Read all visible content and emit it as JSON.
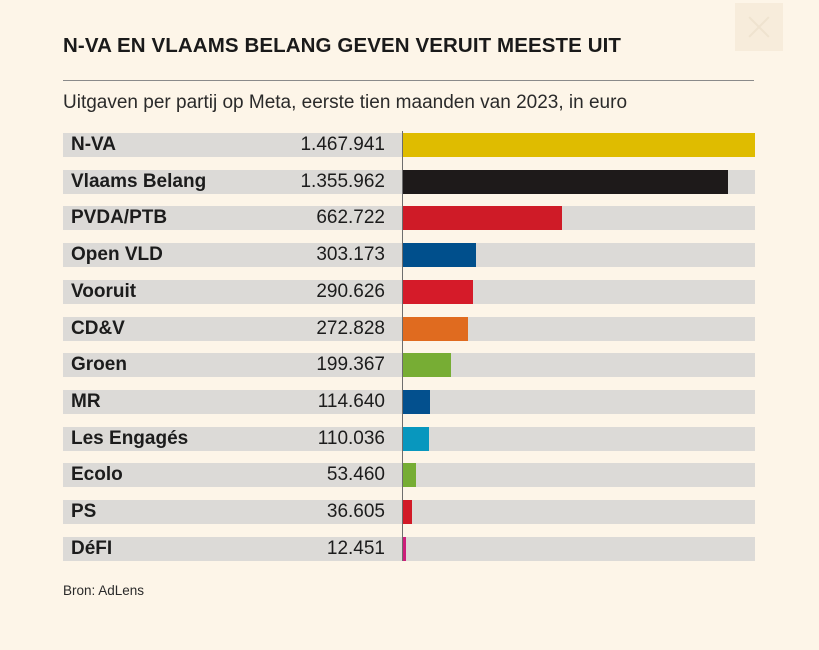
{
  "header": {
    "title": "N-VA EN VLAAMS BELANG GEVEN VERUIT MEESTE UIT",
    "subtitle": "Uitgaven per partij op Meta, eerste tien maanden van 2023, in euro"
  },
  "footer": {
    "source": "Bron: AdLens"
  },
  "chart_data": {
    "type": "bar",
    "orientation": "horizontal",
    "title": "N-VA EN VLAAMS BELANG GEVEN VERUIT MEESTE UIT",
    "subtitle": "Uitgaven per partij op Meta, eerste tien maanden van 2023, in euro",
    "xlim": [
      0,
      1467941
    ],
    "grid": false,
    "categories": [
      "N-VA",
      "Vlaams Belang",
      "PVDA/PTB",
      "Open VLD",
      "Vooruit",
      "CD&V",
      "Groen",
      "MR",
      "Les Engagés",
      "Ecolo",
      "PS",
      "DéFI"
    ],
    "values": [
      1467941,
      1355962,
      662722,
      303173,
      290626,
      272828,
      199367,
      114640,
      110036,
      53460,
      36605,
      12451
    ],
    "value_labels": [
      "1.467.941",
      "1.355.962",
      "662.722",
      "303.173",
      "290.626",
      "272.828",
      "199.367",
      "114.640",
      "110.036",
      "53.460",
      "36.605",
      "12.451"
    ],
    "colors": [
      "#dfbc00",
      "#1e1a1a",
      "#cf1b27",
      "#004f8c",
      "#d51b29",
      "#e06b1f",
      "#77ad34",
      "#03508e",
      "#0897be",
      "#76ad34",
      "#d21a27",
      "#cc1f7a"
    ],
    "source": "Bron: AdLens"
  }
}
